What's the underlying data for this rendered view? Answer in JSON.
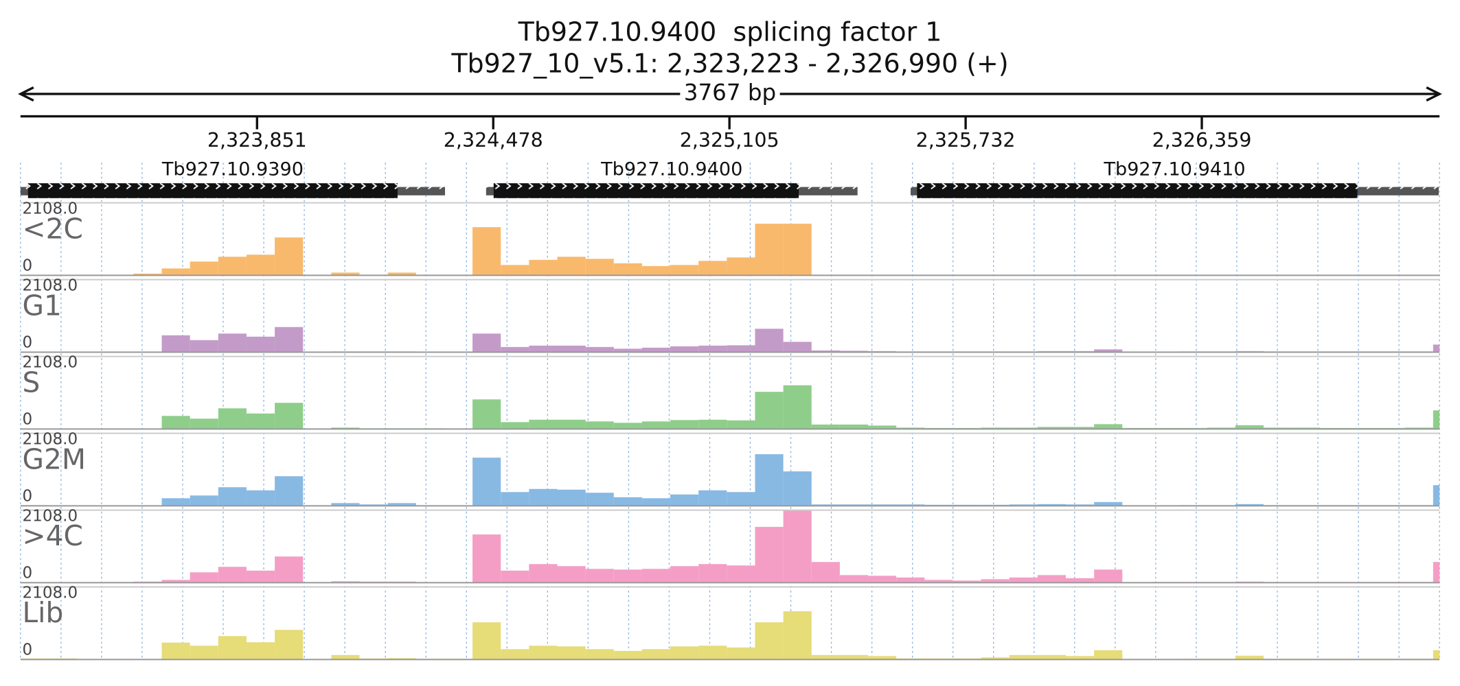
{
  "chart_data": {
    "type": "histogram",
    "title": "Tb927.10.9400  splicing factor 1",
    "subtitle": "Tb927_10_v5.1: 2,323,223 - 2,326,990 (+)",
    "span_label": "3767 bp",
    "xlim": [
      2323223,
      2326990
    ],
    "xticks": [
      {
        "value": 2323851,
        "label": "2,323,851"
      },
      {
        "value": 2324478,
        "label": "2,324,478"
      },
      {
        "value": 2325105,
        "label": "2,325,105"
      },
      {
        "value": 2325732,
        "label": "2,325,732"
      },
      {
        "value": 2326359,
        "label": "2,326,359"
      }
    ],
    "ylim": [
      0,
      2108
    ],
    "yticks": [
      0,
      {
        "value": 2108,
        "label": "2108.0"
      }
    ],
    "grid": true,
    "genes": [
      {
        "name": "Tb927.10.9390",
        "utr_start": 2323223,
        "cds_start": 2323243,
        "cds_end": 2324224,
        "utr_end": 2324350
      },
      {
        "name": "Tb927.10.9400",
        "utr_start": 2324459,
        "cds_start": 2324479,
        "cds_end": 2325289,
        "utr_end": 2325445
      },
      {
        "name": "Tb927.10.9410",
        "utr_start": 2325586,
        "cds_start": 2325603,
        "cds_end": 2326772,
        "utr_end": 2326988
      }
    ],
    "bins": [
      2323223,
      2323298,
      2323373,
      2323448,
      2323523,
      2323598,
      2323673,
      2323748,
      2323823,
      2323898,
      2323973,
      2324048,
      2324123,
      2324198,
      2324273,
      2324348,
      2324423,
      2324498,
      2324573,
      2324648,
      2324723,
      2324798,
      2324873,
      2324948,
      2325023,
      2325098,
      2325173,
      2325248,
      2325323,
      2325398,
      2325473,
      2325548,
      2325623,
      2325698,
      2325773,
      2325848,
      2325923,
      2325998,
      2326073,
      2326148,
      2326223,
      2326298,
      2326373,
      2326448,
      2326523,
      2326598,
      2326673,
      2326748,
      2326823,
      2326898,
      2326973,
      2326990
    ],
    "series": [
      {
        "name": "<2C",
        "color": "#f9b96c",
        "values": [
          0,
          0,
          0,
          0,
          50,
          200,
          400,
          540,
          600,
          1100,
          0,
          80,
          0,
          80,
          0,
          0,
          1400,
          300,
          450,
          540,
          480,
          350,
          270,
          300,
          420,
          520,
          1500,
          1500,
          0,
          0,
          0,
          0,
          0,
          0,
          0,
          0,
          0,
          0,
          0,
          0,
          0,
          0,
          0,
          0,
          0,
          0,
          0,
          0,
          0,
          0,
          0
        ]
      },
      {
        "name": "G1",
        "color": "#c39bc8",
        "values": [
          0,
          0,
          0,
          0,
          0,
          490,
          350,
          540,
          450,
          730,
          0,
          20,
          20,
          20,
          0,
          0,
          540,
          150,
          190,
          190,
          150,
          100,
          130,
          170,
          190,
          200,
          680,
          300,
          50,
          40,
          30,
          20,
          20,
          20,
          20,
          20,
          30,
          30,
          80,
          0,
          0,
          20,
          20,
          30,
          20,
          20,
          20,
          20,
          20,
          20,
          220
        ]
      },
      {
        "name": "S",
        "color": "#8fce8a",
        "values": [
          0,
          0,
          0,
          0,
          0,
          380,
          300,
          600,
          450,
          760,
          0,
          40,
          20,
          20,
          20,
          0,
          860,
          200,
          270,
          270,
          220,
          180,
          220,
          260,
          270,
          250,
          1080,
          1270,
          130,
          130,
          100,
          40,
          30,
          30,
          40,
          40,
          60,
          60,
          140,
          30,
          30,
          30,
          40,
          110,
          40,
          40,
          30,
          30,
          30,
          40,
          540
        ]
      },
      {
        "name": "G2M",
        "color": "#88b9e3",
        "values": [
          20,
          0,
          0,
          0,
          0,
          220,
          300,
          540,
          450,
          860,
          0,
          80,
          40,
          80,
          0,
          0,
          1400,
          400,
          490,
          470,
          380,
          250,
          220,
          330,
          450,
          400,
          1500,
          1000,
          40,
          40,
          40,
          40,
          30,
          30,
          30,
          40,
          50,
          40,
          110,
          0,
          0,
          20,
          20,
          50,
          20,
          20,
          20,
          20,
          20,
          20,
          600
        ]
      },
      {
        "name": ">4C",
        "color": "#f49ec6",
        "values": [
          10,
          10,
          10,
          20,
          30,
          80,
          300,
          460,
          350,
          760,
          0,
          40,
          30,
          30,
          0,
          0,
          1400,
          350,
          540,
          480,
          400,
          380,
          400,
          480,
          540,
          500,
          1620,
          2108,
          600,
          220,
          200,
          150,
          80,
          60,
          100,
          150,
          220,
          130,
          380,
          0,
          20,
          20,
          20,
          30,
          20,
          20,
          20,
          20,
          20,
          20,
          600
        ]
      },
      {
        "name": "Lib",
        "color": "#e6dc78",
        "values": [
          30,
          30,
          0,
          0,
          0,
          490,
          400,
          680,
          500,
          860,
          0,
          130,
          30,
          40,
          20,
          20,
          1080,
          300,
          400,
          380,
          300,
          250,
          300,
          380,
          400,
          350,
          1080,
          1400,
          130,
          130,
          100,
          30,
          30,
          30,
          60,
          130,
          130,
          100,
          270,
          0,
          0,
          20,
          20,
          110,
          20,
          20,
          20,
          20,
          20,
          20,
          270
        ]
      }
    ]
  }
}
